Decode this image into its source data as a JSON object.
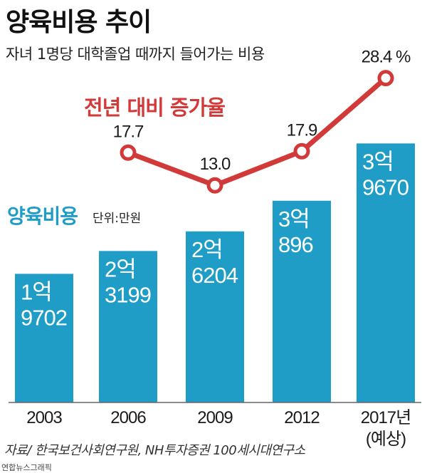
{
  "title": "양육비용 추이",
  "subtitle": "자녀 1명당 대학졸업 때까지 들어가는 비용",
  "source": "자료/ 한국보건사회연구원, NH투자증권 100세시대연구소",
  "credit": "연합뉴스그래픽",
  "colors": {
    "bar": "#1f9dc7",
    "line": "#d23a3a",
    "bar_text": "#ffffff"
  },
  "chart_data": [
    {
      "type": "bar",
      "title": "양육비용",
      "unit": "단위:만원",
      "categories": [
        "2003",
        "2006",
        "2009",
        "2012",
        "2017년\n(예상)"
      ],
      "values": [
        19702,
        23199,
        26204,
        30896,
        39670
      ],
      "value_labels": [
        [
          "1억",
          "9702"
        ],
        [
          "2억",
          "3199"
        ],
        [
          "2억",
          "6204"
        ],
        [
          "3억",
          "896"
        ],
        [
          "3억",
          "9670"
        ]
      ],
      "ylim": [
        0,
        42000
      ]
    },
    {
      "type": "line",
      "title": "전년 대비 증가율",
      "categories": [
        "2006",
        "2009",
        "2012",
        "2017년\n(예상)"
      ],
      "values": [
        17.7,
        13.0,
        17.9,
        28.4
      ],
      "value_labels": [
        "17.7",
        "13.0",
        "17.9",
        "28.4 %"
      ],
      "ylim": [
        12,
        30
      ]
    }
  ]
}
